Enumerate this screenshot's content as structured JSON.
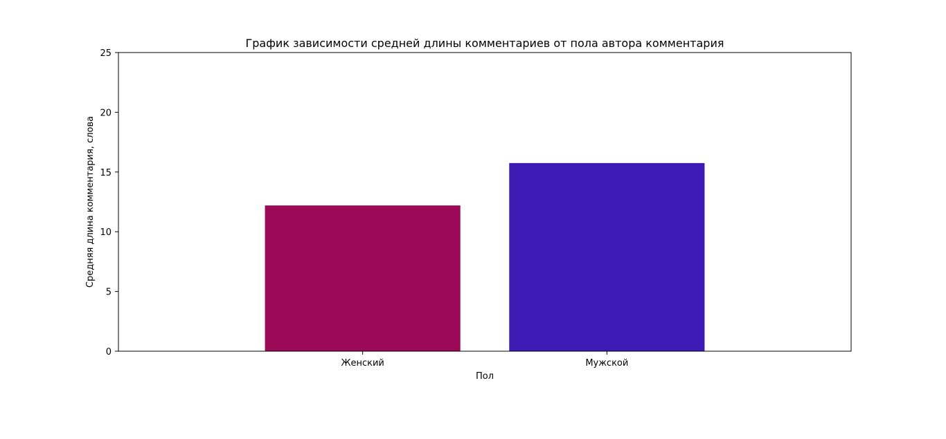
{
  "chart_data": {
    "type": "bar",
    "title": "График зависимости средней длины комментариев от пола автора комментария",
    "xlabel": "Пол",
    "ylabel": "Средняя длина комментария, слова",
    "categories": [
      "Женский",
      "Мужской"
    ],
    "values": [
      12.2,
      15.75
    ],
    "colors": [
      "#9b0957",
      "#3e1ab4"
    ],
    "ylim": [
      0,
      25
    ],
    "yticks": [
      0,
      5,
      10,
      15,
      20,
      25
    ],
    "grid": false,
    "legend": "none"
  }
}
